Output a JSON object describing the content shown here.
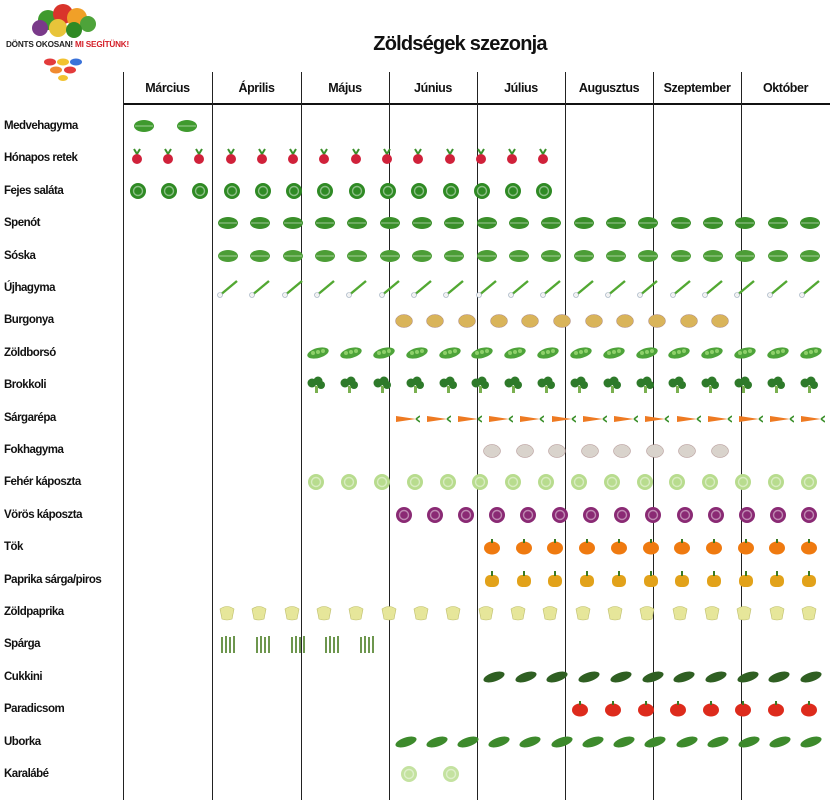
{
  "logo": {
    "text_main": "DÖNTS OKOSAN!",
    "text_accent": "MI SEGÍTÜNK!"
  },
  "title": "Zöldségek szezonja",
  "months": [
    "Március",
    "Április",
    "Május",
    "Június",
    "Július",
    "Augusztus",
    "Szeptember",
    "Október"
  ],
  "rows": [
    {
      "label": "Medvehagyma",
      "icon": "wild-garlic-icon",
      "color": "#3f9a2e",
      "season": [
        "Március"
      ]
    },
    {
      "label": "Hónapos retek",
      "icon": "radish-icon",
      "color": "#d0213a",
      "season": [
        "Március",
        "Április",
        "Május",
        "Június",
        "Július"
      ]
    },
    {
      "label": "Fejes saláta",
      "icon": "lettuce-icon",
      "color": "#2f8a24",
      "season": [
        "Március",
        "Április",
        "Május",
        "Június",
        "Július"
      ]
    },
    {
      "label": "Spenót",
      "icon": "spinach-icon",
      "color": "#3a8f2a",
      "season": [
        "Április",
        "Május",
        "Június",
        "Július",
        "Augusztus",
        "Szeptember",
        "Október"
      ]
    },
    {
      "label": "Sóska",
      "icon": "sorrel-icon",
      "color": "#4c9d36",
      "season": [
        "Április",
        "Május",
        "Június",
        "Július",
        "Augusztus",
        "Szeptember",
        "Október"
      ]
    },
    {
      "label": "Újhagyma",
      "icon": "spring-onion-icon",
      "color": "#52a832",
      "season": [
        "Április",
        "Május",
        "Június",
        "Július",
        "Augusztus",
        "Szeptember",
        "Október"
      ]
    },
    {
      "label": "Burgonya",
      "icon": "potato-icon",
      "color": "#d9b45a",
      "season": [
        "Június",
        "Július",
        "Augusztus",
        "Szeptember"
      ]
    },
    {
      "label": "Zöldborsó",
      "icon": "pea-pod-icon",
      "color": "#4ea33a",
      "season": [
        "Május",
        "Június",
        "Július",
        "Augusztus",
        "Szeptember",
        "Október"
      ]
    },
    {
      "label": "Brokkoli",
      "icon": "broccoli-icon",
      "color": "#2e7a2a",
      "season": [
        "Május",
        "Június",
        "Július",
        "Augusztus",
        "Szeptember",
        "Október"
      ]
    },
    {
      "label": "Sárgarépa",
      "icon": "carrot-icon",
      "color": "#ee7a22",
      "season": [
        "Június",
        "Július",
        "Augusztus",
        "Szeptember",
        "Október"
      ]
    },
    {
      "label": "Fokhagyma",
      "icon": "garlic-icon",
      "color": "#d9d3cc",
      "season": [
        "Július",
        "Augusztus",
        "Szeptember"
      ]
    },
    {
      "label": "Fehér káposzta",
      "icon": "white-cabbage-icon",
      "color": "#b8dc8e",
      "season": [
        "Május",
        "Június",
        "Július",
        "Augusztus",
        "Szeptember",
        "Október"
      ]
    },
    {
      "label": "Vörös káposzta",
      "icon": "red-cabbage-icon",
      "color": "#8a2a74",
      "season": [
        "Június",
        "Július",
        "Augusztus",
        "Szeptember",
        "Október"
      ]
    },
    {
      "label": "Tök",
      "icon": "pumpkin-icon",
      "color": "#ef7a10",
      "season": [
        "Július",
        "Augusztus",
        "Szeptember",
        "Október"
      ]
    },
    {
      "label": "Paprika sárga/piros",
      "icon": "bell-pepper-icon",
      "color": "#e2a21a",
      "season": [
        "Július",
        "Augusztus",
        "Szeptember",
        "Október"
      ]
    },
    {
      "label": "Zöldpaprika",
      "icon": "green-pepper-icon",
      "color": "#e6e69a",
      "season": [
        "Április",
        "Május",
        "Június",
        "Július",
        "Augusztus",
        "Szeptember",
        "Október"
      ]
    },
    {
      "label": "Spárga",
      "icon": "asparagus-icon",
      "color": "#5d8a3a",
      "season": [
        "Április",
        "Május"
      ]
    },
    {
      "label": "Cukkini",
      "icon": "zucchini-icon",
      "color": "#2f5f22",
      "season": [
        "Július",
        "Augusztus",
        "Szeptember",
        "Október"
      ]
    },
    {
      "label": "Paradicsom",
      "icon": "tomato-icon",
      "color": "#dd2b1c",
      "season": [
        "Augusztus",
        "Szeptember",
        "Október"
      ]
    },
    {
      "label": "Uborka",
      "icon": "cucumber-icon",
      "color": "#3d8a2c",
      "season": [
        "Június",
        "Július",
        "Augusztus",
        "Szeptember",
        "Október"
      ]
    },
    {
      "label": "Karalábé",
      "icon": "kohlrabi-icon",
      "color": "#c4e2a0",
      "season": [
        "Június"
      ]
    }
  ]
}
